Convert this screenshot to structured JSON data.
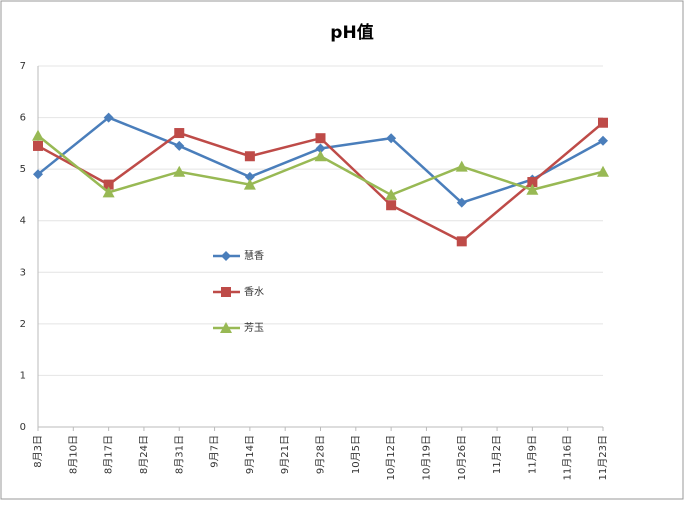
{
  "chart_data": {
    "type": "line",
    "title": "pH值",
    "categories": [
      "8月3日",
      "8月17日",
      "8月31日",
      "9月14日",
      "9月28日",
      "10月12日",
      "10月26日",
      "11月9日",
      "11月23日"
    ],
    "x_minor_labels": [
      "8月10日",
      "8月24日",
      "9月7日",
      "9月21日",
      "10月5日",
      "10月19日",
      "11月2日",
      "11月16日"
    ],
    "series": [
      {
        "name": "慧香",
        "color": "#4a7ebb",
        "marker": "diamond",
        "values": [
          4.9,
          6.0,
          5.45,
          4.85,
          5.4,
          5.6,
          4.35,
          4.8,
          5.55
        ]
      },
      {
        "name": "香水",
        "color": "#be4b48",
        "marker": "square",
        "values": [
          5.45,
          4.7,
          5.7,
          5.25,
          5.6,
          4.3,
          3.6,
          4.75,
          5.9
        ]
      },
      {
        "name": "芳玉",
        "color": "#98b954",
        "marker": "triangle",
        "values": [
          5.65,
          4.55,
          4.95,
          4.7,
          5.25,
          4.5,
          5.05,
          4.6,
          4.95
        ]
      }
    ],
    "ylim": [
      0,
      7
    ],
    "yticks": [
      0,
      1,
      2,
      3,
      4,
      5,
      6,
      7
    ],
    "grid": true,
    "legend": "inside-left"
  }
}
